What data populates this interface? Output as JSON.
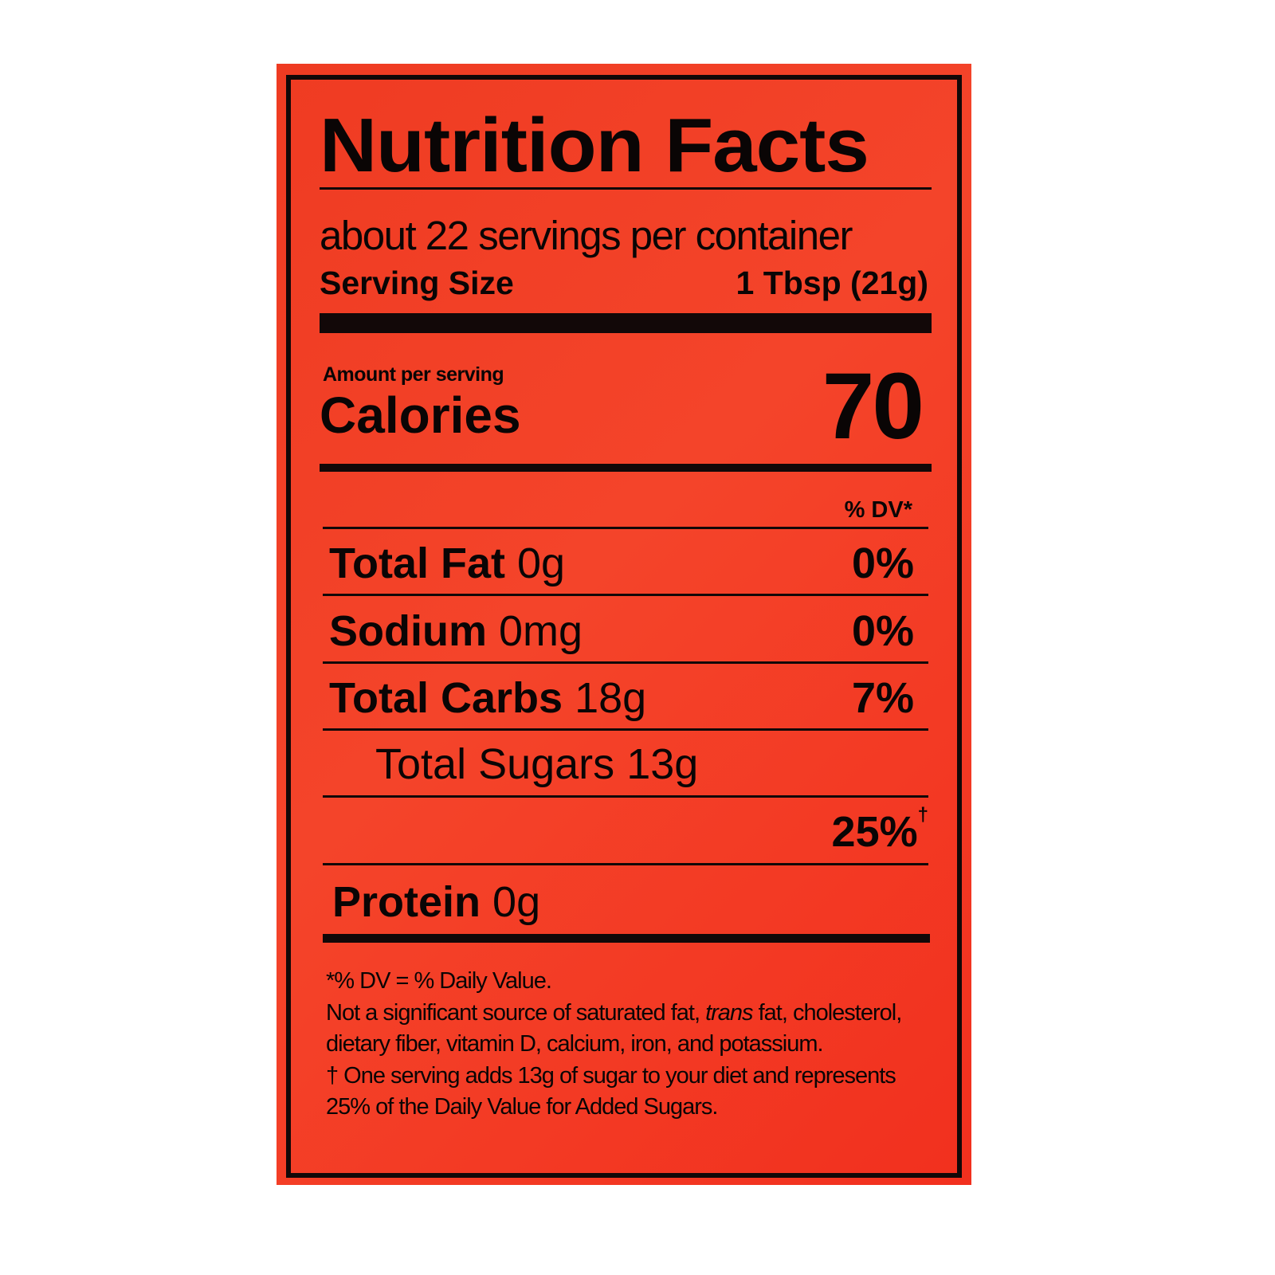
{
  "label": {
    "title": "Nutrition Facts",
    "servings_per_container": "about 22 servings per container",
    "serving_size_label": "Serving Size",
    "serving_size_value": "1 Tbsp (21g)",
    "amount_per_serving": "Amount per serving",
    "calories_label": "Calories",
    "calories_value": "70",
    "dv_header": "% DV*",
    "nutrients": [
      {
        "name": "Total Fat",
        "amount": "0g",
        "dv": "0%"
      },
      {
        "name": "Sodium",
        "amount": "0mg",
        "dv": "0%"
      },
      {
        "name": "Total Carbs",
        "amount": "18g",
        "dv": "7%"
      },
      {
        "name": "Total Sugars",
        "amount": "13g",
        "dv": ""
      },
      {
        "name": "",
        "amount": "",
        "dv": "25%",
        "mark": "†"
      },
      {
        "name": "Protein",
        "amount": "0g",
        "dv": ""
      }
    ],
    "footnotes": {
      "dv_definition": "*% DV = % Daily Value.",
      "not_significant_pre": "Not a significant source of saturated fat, ",
      "not_significant_italic": "trans",
      "not_significant_post": " fat, cholesterol, dietary fiber, vitamin D, calcium, iron, and potassium.",
      "added_sugars": "† One serving adds 13g of sugar to your diet and represents 25% of the Daily Value for Added Sugars."
    },
    "colors": {
      "background": "#f23a22",
      "ink": "#120808"
    }
  }
}
